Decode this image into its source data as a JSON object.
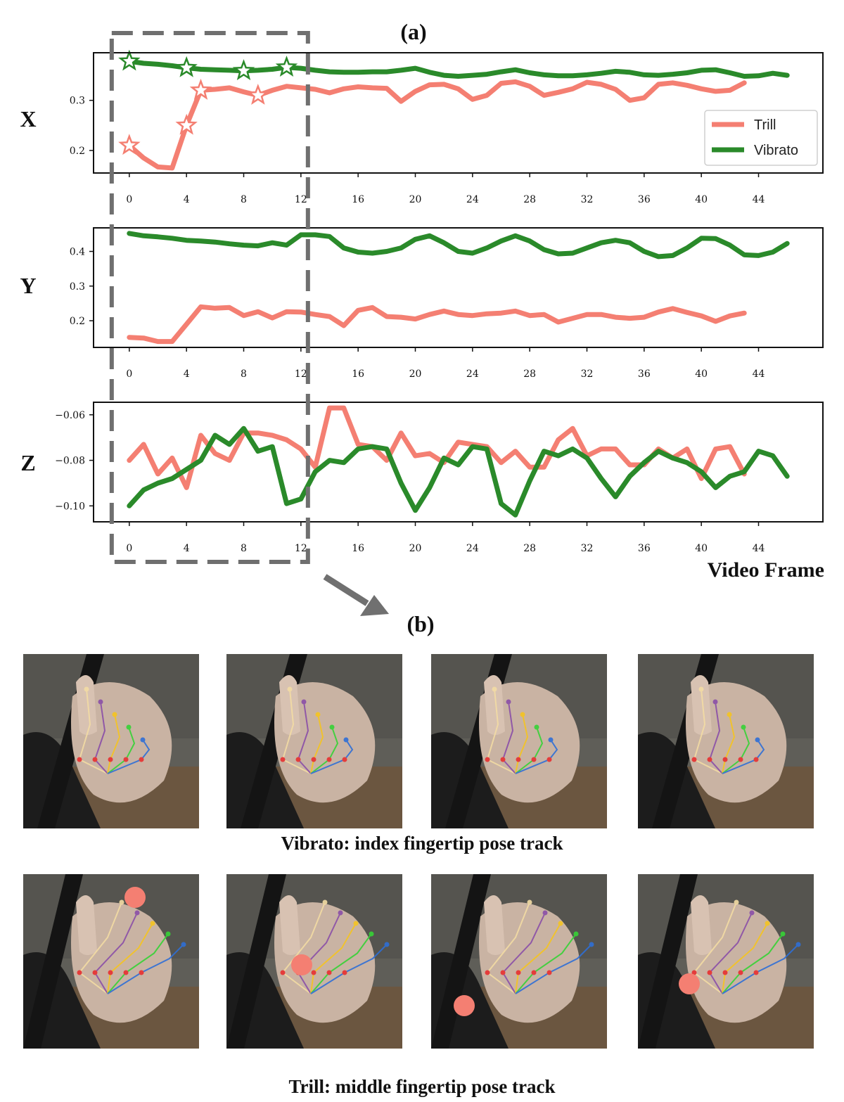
{
  "chart_data": {
    "type": "line",
    "title": "(a)",
    "xlabel": "Video Frame",
    "xticks": [
      0,
      4,
      8,
      12,
      16,
      20,
      24,
      28,
      32,
      36,
      40,
      44
    ],
    "xlim": [
      -2.5,
      48.5
    ],
    "legend": {
      "position": "right",
      "entries": [
        "Trill",
        "Vibrato"
      ]
    },
    "colors": {
      "Trill": "#f47f72",
      "Vibrato": "#2a8a2a",
      "box": "#6f6f6f"
    },
    "highlight_box": {
      "from_frame": 0,
      "to_frame": 12
    },
    "panels": [
      {
        "name": "X",
        "ylim": [
          0.155,
          0.395
        ],
        "yticks": [
          0.2,
          0.3
        ],
        "ytick_labels": [
          "0.2",
          "0.3"
        ],
        "series": [
          {
            "name": "Trill",
            "x_start": 0,
            "values": [
              0.21,
              0.185,
              0.167,
              0.165,
              0.25,
              0.32,
              0.322,
              0.325,
              0.317,
              0.31,
              0.32,
              0.328,
              0.325,
              0.322,
              0.315,
              0.323,
              0.327,
              0.325,
              0.324,
              0.298,
              0.318,
              0.331,
              0.332,
              0.323,
              0.302,
              0.31,
              0.334,
              0.337,
              0.328,
              0.31,
              0.316,
              0.323,
              0.336,
              0.332,
              0.322,
              0.3,
              0.305,
              0.332,
              0.335,
              0.33,
              0.323,
              0.318,
              0.32,
              0.335
            ],
            "markers_at": [
              0,
              4,
              5,
              9
            ]
          },
          {
            "name": "Vibrato",
            "x_start": 0,
            "values": [
              0.378,
              0.374,
              0.372,
              0.369,
              0.365,
              0.362,
              0.361,
              0.36,
              0.359,
              0.36,
              0.362,
              0.366,
              0.364,
              0.36,
              0.357,
              0.356,
              0.356,
              0.357,
              0.357,
              0.36,
              0.364,
              0.356,
              0.35,
              0.348,
              0.35,
              0.352,
              0.357,
              0.361,
              0.355,
              0.351,
              0.349,
              0.349,
              0.351,
              0.354,
              0.358,
              0.356,
              0.351,
              0.35,
              0.352,
              0.355,
              0.36,
              0.361,
              0.355,
              0.348,
              0.349,
              0.354,
              0.35
            ],
            "markers_at": [
              0,
              4,
              8,
              11
            ]
          }
        ]
      },
      {
        "name": "Y",
        "ylim": [
          0.123,
          0.468
        ],
        "yticks": [
          0.2,
          0.3,
          0.4
        ],
        "ytick_labels": [
          "0.2",
          "0.3",
          "0.4"
        ],
        "series": [
          {
            "name": "Trill",
            "x_start": 0,
            "values": [
              0.152,
              0.15,
              0.14,
              0.14,
              0.19,
              0.24,
              0.236,
              0.238,
              0.215,
              0.226,
              0.208,
              0.226,
              0.225,
              0.218,
              0.212,
              0.186,
              0.23,
              0.238,
              0.212,
              0.21,
              0.205,
              0.218,
              0.228,
              0.218,
              0.215,
              0.22,
              0.222,
              0.228,
              0.215,
              0.218,
              0.196,
              0.207,
              0.218,
              0.218,
              0.21,
              0.207,
              0.21,
              0.225,
              0.235,
              0.224,
              0.214,
              0.198,
              0.214,
              0.222
            ]
          },
          {
            "name": "Vibrato",
            "x_start": 0,
            "values": [
              0.452,
              0.445,
              0.442,
              0.438,
              0.432,
              0.43,
              0.427,
              0.422,
              0.418,
              0.416,
              0.425,
              0.418,
              0.448,
              0.448,
              0.443,
              0.41,
              0.398,
              0.395,
              0.4,
              0.41,
              0.435,
              0.445,
              0.425,
              0.4,
              0.395,
              0.41,
              0.43,
              0.445,
              0.43,
              0.405,
              0.393,
              0.395,
              0.41,
              0.425,
              0.432,
              0.425,
              0.4,
              0.385,
              0.388,
              0.41,
              0.438,
              0.437,
              0.418,
              0.39,
              0.388,
              0.398,
              0.423
            ]
          }
        ]
      },
      {
        "name": "Z",
        "ylim": [
          -0.107,
          -0.0545
        ],
        "yticks": [
          -0.06,
          -0.08,
          -0.1
        ],
        "ytick_labels": [
          "−0.06",
          "−0.08",
          "−0.10"
        ],
        "series": [
          {
            "name": "Trill",
            "x_start": 0,
            "values": [
              -0.08,
              -0.073,
              -0.086,
              -0.079,
              -0.092,
              -0.069,
              -0.077,
              -0.08,
              -0.068,
              -0.068,
              -0.069,
              -0.071,
              -0.075,
              -0.083,
              -0.057,
              -0.057,
              -0.073,
              -0.074,
              -0.08,
              -0.068,
              -0.078,
              -0.077,
              -0.081,
              -0.072,
              -0.073,
              -0.074,
              -0.081,
              -0.076,
              -0.083,
              -0.083,
              -0.071,
              -0.066,
              -0.078,
              -0.075,
              -0.075,
              -0.082,
              -0.082,
              -0.075,
              -0.079,
              -0.075,
              -0.088,
              -0.075,
              -0.074,
              -0.086
            ]
          },
          {
            "name": "Vibrato",
            "x_start": 0,
            "values": [
              -0.1,
              -0.093,
              -0.09,
              -0.088,
              -0.084,
              -0.08,
              -0.069,
              -0.073,
              -0.066,
              -0.076,
              -0.074,
              -0.099,
              -0.097,
              -0.085,
              -0.08,
              -0.081,
              -0.075,
              -0.074,
              -0.075,
              -0.09,
              -0.102,
              -0.092,
              -0.079,
              -0.082,
              -0.074,
              -0.075,
              -0.099,
              -0.104,
              -0.089,
              -0.076,
              -0.078,
              -0.075,
              -0.079,
              -0.088,
              -0.096,
              -0.087,
              -0.081,
              -0.076,
              -0.079,
              -0.081,
              -0.085,
              -0.092,
              -0.087,
              -0.085,
              -0.076,
              -0.078,
              -0.087
            ]
          }
        ]
      }
    ]
  },
  "panel_b": {
    "label": "(b)",
    "vibrato_caption": "Vibrato: index fingertip pose track",
    "trill_caption": "Trill: middle fingertip pose track",
    "vibrato_marker_color": "#1f8a1f",
    "trill_marker_color": "#f47f72",
    "vibrato_frames": [
      "vibrato-frame-1",
      "vibrato-frame-2",
      "vibrato-frame-3",
      "vibrato-frame-4"
    ],
    "trill_frames": [
      "trill-frame-1",
      "trill-frame-2",
      "trill-frame-3",
      "trill-frame-4"
    ]
  }
}
